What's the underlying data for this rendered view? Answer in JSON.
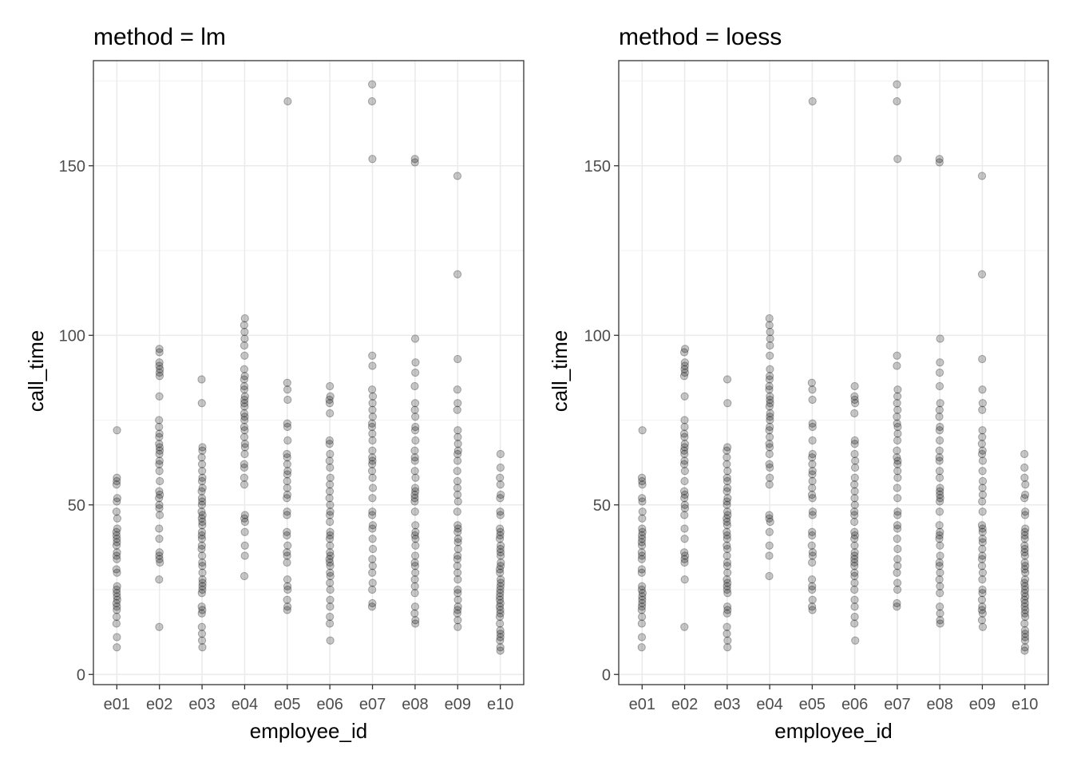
{
  "chart_data": [
    {
      "type": "scatter",
      "title": "method = lm",
      "xlabel": "employee_id",
      "ylabel": "call_time",
      "categories": [
        "e01",
        "e02",
        "e03",
        "e04",
        "e05",
        "e06",
        "e07",
        "e08",
        "e09",
        "e10"
      ],
      "yticks": [
        0,
        50,
        100,
        150
      ],
      "ylim": [
        -3,
        181
      ],
      "grid": true,
      "point_color": "#000000",
      "point_opacity": 0.22,
      "points": {
        "e01": [
          8,
          11,
          15,
          17,
          19,
          20,
          21,
          22,
          23,
          24,
          25,
          26,
          30,
          31,
          34,
          35,
          36,
          38,
          39,
          40,
          41,
          42,
          43,
          46,
          48,
          51,
          52,
          56,
          57,
          58,
          72
        ],
        "e02": [
          14,
          28,
          33,
          34,
          35,
          36,
          40,
          43,
          47,
          49,
          50,
          52,
          53,
          54,
          57,
          60,
          62,
          63,
          65,
          66,
          67,
          68,
          70,
          71,
          73,
          75,
          82,
          88,
          89,
          90,
          91,
          92,
          95,
          96
        ],
        "e03": [
          8,
          10,
          12,
          14,
          18,
          19,
          20,
          24,
          25,
          26,
          27,
          28,
          30,
          32,
          33,
          35,
          37,
          38,
          40,
          41,
          42,
          44,
          45,
          46,
          47,
          48,
          50,
          51,
          52,
          54,
          55,
          57,
          58,
          60,
          62,
          64,
          66,
          67,
          80,
          87
        ],
        "e04": [
          29,
          35,
          38,
          42,
          45,
          46,
          47,
          56,
          58,
          61,
          62,
          65,
          67,
          68,
          70,
          72,
          73,
          75,
          76,
          77,
          79,
          80,
          81,
          82,
          84,
          85,
          87,
          88,
          90,
          94,
          97,
          99,
          101,
          103,
          105
        ],
        "e05": [
          19,
          20,
          22,
          25,
          26,
          28,
          33,
          35,
          36,
          38,
          41,
          42,
          47,
          48,
          52,
          53,
          55,
          57,
          59,
          60,
          62,
          64,
          65,
          69,
          73,
          74,
          81,
          84,
          86,
          169
        ],
        "e06": [
          10,
          15,
          17,
          20,
          22,
          25,
          27,
          29,
          30,
          32,
          33,
          34,
          35,
          36,
          38,
          40,
          41,
          42,
          45,
          47,
          48,
          50,
          52,
          54,
          56,
          58,
          61,
          63,
          65,
          68,
          69,
          77,
          80,
          81,
          82,
          85
        ],
        "e07": [
          20,
          21,
          25,
          27,
          30,
          32,
          34,
          37,
          40,
          43,
          44,
          47,
          48,
          52,
          55,
          58,
          60,
          62,
          63,
          64,
          66,
          69,
          71,
          73,
          74,
          76,
          78,
          80,
          82,
          84,
          91,
          94,
          152,
          169,
          174
        ],
        "e08": [
          15,
          16,
          18,
          20,
          24,
          26,
          28,
          30,
          32,
          33,
          35,
          38,
          40,
          41,
          42,
          44,
          48,
          51,
          52,
          53,
          54,
          55,
          58,
          60,
          63,
          64,
          66,
          69,
          72,
          73,
          76,
          78,
          80,
          85,
          89,
          92,
          99,
          151,
          152
        ],
        "e09": [
          14,
          16,
          18,
          19,
          20,
          22,
          24,
          25,
          28,
          30,
          32,
          34,
          35,
          37,
          39,
          40,
          42,
          43,
          44,
          48,
          51,
          53,
          55,
          57,
          60,
          63,
          65,
          66,
          68,
          70,
          72,
          78,
          80,
          84,
          93,
          118,
          147
        ],
        "e10": [
          7,
          8,
          10,
          11,
          12,
          13,
          15,
          17,
          18,
          19,
          20,
          21,
          22,
          23,
          24,
          25,
          26,
          27,
          28,
          30,
          31,
          32,
          33,
          35,
          36,
          37,
          38,
          40,
          41,
          42,
          43,
          47,
          48,
          52,
          53,
          56,
          58,
          61,
          65
        ]
      }
    },
    {
      "type": "scatter",
      "title": "method = loess",
      "xlabel": "employee_id",
      "ylabel": "call_time",
      "categories": [
        "e01",
        "e02",
        "e03",
        "e04",
        "e05",
        "e06",
        "e07",
        "e08",
        "e09",
        "e10"
      ],
      "yticks": [
        0,
        50,
        100,
        150
      ],
      "ylim": [
        -3,
        181
      ],
      "grid": true,
      "point_color": "#000000",
      "point_opacity": 0.22,
      "points": {
        "e01": [
          8,
          11,
          15,
          17,
          19,
          20,
          21,
          22,
          23,
          24,
          25,
          26,
          30,
          31,
          34,
          35,
          36,
          38,
          39,
          40,
          41,
          42,
          43,
          46,
          48,
          51,
          52,
          56,
          57,
          58,
          72
        ],
        "e02": [
          14,
          28,
          33,
          34,
          35,
          36,
          40,
          43,
          47,
          49,
          50,
          52,
          53,
          54,
          57,
          60,
          62,
          63,
          65,
          66,
          67,
          68,
          70,
          71,
          73,
          75,
          82,
          88,
          89,
          90,
          91,
          92,
          95,
          96
        ],
        "e03": [
          8,
          10,
          12,
          14,
          18,
          19,
          20,
          24,
          25,
          26,
          27,
          28,
          30,
          32,
          33,
          35,
          37,
          38,
          40,
          41,
          42,
          44,
          45,
          46,
          47,
          48,
          50,
          51,
          52,
          54,
          55,
          57,
          58,
          60,
          62,
          64,
          66,
          67,
          80,
          87
        ],
        "e04": [
          29,
          35,
          38,
          42,
          45,
          46,
          47,
          56,
          58,
          61,
          62,
          65,
          67,
          68,
          70,
          72,
          73,
          75,
          76,
          77,
          79,
          80,
          81,
          82,
          84,
          85,
          87,
          88,
          90,
          94,
          97,
          99,
          101,
          103,
          105
        ],
        "e05": [
          19,
          20,
          22,
          25,
          26,
          28,
          33,
          35,
          36,
          38,
          41,
          42,
          47,
          48,
          52,
          53,
          55,
          57,
          59,
          60,
          62,
          64,
          65,
          69,
          73,
          74,
          81,
          84,
          86,
          169
        ],
        "e06": [
          10,
          15,
          17,
          20,
          22,
          25,
          27,
          29,
          30,
          32,
          33,
          34,
          35,
          36,
          38,
          40,
          41,
          42,
          45,
          47,
          48,
          50,
          52,
          54,
          56,
          58,
          61,
          63,
          65,
          68,
          69,
          77,
          80,
          81,
          82,
          85
        ],
        "e07": [
          20,
          21,
          25,
          27,
          30,
          32,
          34,
          37,
          40,
          43,
          44,
          47,
          48,
          52,
          55,
          58,
          60,
          62,
          63,
          64,
          66,
          69,
          71,
          73,
          74,
          76,
          78,
          80,
          82,
          84,
          91,
          94,
          152,
          169,
          174
        ],
        "e08": [
          15,
          16,
          18,
          20,
          24,
          26,
          28,
          30,
          32,
          33,
          35,
          38,
          40,
          41,
          42,
          44,
          48,
          51,
          52,
          53,
          54,
          55,
          58,
          60,
          63,
          64,
          66,
          69,
          72,
          73,
          76,
          78,
          80,
          85,
          89,
          92,
          99,
          151,
          152
        ],
        "e09": [
          14,
          16,
          18,
          19,
          20,
          22,
          24,
          25,
          28,
          30,
          32,
          34,
          35,
          37,
          39,
          40,
          42,
          43,
          44,
          48,
          51,
          53,
          55,
          57,
          60,
          63,
          65,
          66,
          68,
          70,
          72,
          78,
          80,
          84,
          93,
          118,
          147
        ],
        "e10": [
          7,
          8,
          10,
          11,
          12,
          13,
          15,
          17,
          18,
          19,
          20,
          21,
          22,
          23,
          24,
          25,
          26,
          27,
          28,
          30,
          31,
          32,
          33,
          35,
          36,
          37,
          38,
          40,
          41,
          42,
          43,
          47,
          48,
          52,
          53,
          56,
          58,
          61,
          65
        ]
      }
    }
  ]
}
